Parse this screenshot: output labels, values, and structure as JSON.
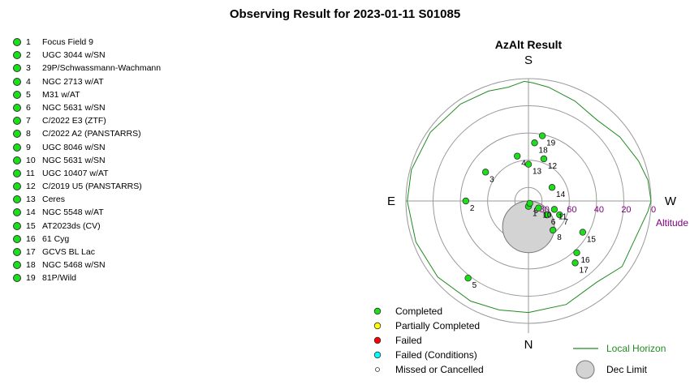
{
  "title": "Observing Result for 2023-01-11 S01085",
  "targets": [
    {
      "id": "1",
      "name": "Focus Field 9",
      "status": "Completed"
    },
    {
      "id": "2",
      "name": "UGC 3044 w/SN",
      "status": "Completed"
    },
    {
      "id": "3",
      "name": "29P/Schwassmann-Wachmann",
      "status": "Completed"
    },
    {
      "id": "4",
      "name": "NGC 2713 w/AT",
      "status": "Completed"
    },
    {
      "id": "5",
      "name": "M31 w/AT",
      "status": "Completed"
    },
    {
      "id": "6",
      "name": "NGC 5631 w/SN",
      "status": "Completed"
    },
    {
      "id": "7",
      "name": "C/2022 E3 (ZTF)",
      "status": "Completed"
    },
    {
      "id": "8",
      "name": "C/2022 A2 (PANSTARRS)",
      "status": "Completed"
    },
    {
      "id": "9",
      "name": "UGC 8046 w/SN",
      "status": "Completed"
    },
    {
      "id": "10",
      "name": "NGC 5631 w/SN",
      "status": "Completed"
    },
    {
      "id": "11",
      "name": "UGC 10407 w/AT",
      "status": "Completed"
    },
    {
      "id": "12",
      "name": "C/2019 U5 (PANSTARRS)",
      "status": "Completed"
    },
    {
      "id": "13",
      "name": "Ceres",
      "status": "Completed"
    },
    {
      "id": "14",
      "name": "NGC 5548 w/AT",
      "status": "Completed"
    },
    {
      "id": "15",
      "name": "AT2023ds (CV)",
      "status": "Completed"
    },
    {
      "id": "16",
      "name": "61 Cyg",
      "status": "Completed"
    },
    {
      "id": "17",
      "name": "GCVS BL Lac",
      "status": "Completed"
    },
    {
      "id": "18",
      "name": "NGC 5468 w/SN",
      "status": "Completed"
    },
    {
      "id": "19",
      "name": "81P/Wild",
      "status": "Completed"
    }
  ],
  "chart_data": {
    "type": "scatter",
    "projection": "polar-azalt",
    "title": "AzAlt Result",
    "directions": {
      "north": "N",
      "south": "S",
      "east": "E",
      "west": "W"
    },
    "radial_axis_label": "Altitude",
    "radial_ticks": [
      80,
      60,
      40,
      20,
      0
    ],
    "altitude_range": [
      0,
      90
    ],
    "rings_at_altitude": [
      0,
      20,
      40,
      60,
      80
    ],
    "colors": {
      "completed": "#19e019",
      "partial": "#ffff00",
      "failed": "#ff0000",
      "failed_conditions": "#00ffff",
      "missed": "#ffffff",
      "horizon": "#228b22",
      "dec_limit_fill": "#d3d3d3",
      "altitude_labels": "#800080"
    },
    "points": [
      {
        "label": "1",
        "az": 0,
        "alt": 86
      },
      {
        "label": "2",
        "az": 270,
        "alt": 44
      },
      {
        "label": "3",
        "az": 236,
        "alt": 52
      },
      {
        "label": "4",
        "az": 194,
        "alt": 56
      },
      {
        "label": "5",
        "az": 322,
        "alt": 18
      },
      {
        "label": "6",
        "az": 53,
        "alt": 73
      },
      {
        "label": "7",
        "az": 66,
        "alt": 65
      },
      {
        "label": "8",
        "az": 40,
        "alt": 62
      },
      {
        "label": "9",
        "az": 30,
        "alt": 88
      },
      {
        "label": "10",
        "az": 55,
        "alt": 81
      },
      {
        "label": "11",
        "az": 72,
        "alt": 70
      },
      {
        "label": "12",
        "az": 160,
        "alt": 57
      },
      {
        "label": "13",
        "az": 180,
        "alt": 63
      },
      {
        "label": "14",
        "az": 120,
        "alt": 70
      },
      {
        "label": "15",
        "az": 60,
        "alt": 44
      },
      {
        "label": "16",
        "az": 43,
        "alt": 38
      },
      {
        "label": "17",
        "az": 37,
        "alt": 33
      },
      {
        "label": "18",
        "az": 174,
        "alt": 47
      },
      {
        "label": "19",
        "az": 168,
        "alt": 41
      }
    ],
    "dec_limit": {
      "az": 0,
      "alt": 71,
      "radius_deg": 19
    },
    "horizon": [
      {
        "az": 0,
        "alt": 8
      },
      {
        "az": 20,
        "alt": 9
      },
      {
        "az": 40,
        "alt": 12
      },
      {
        "az": 55,
        "alt": 6
      },
      {
        "az": 70,
        "alt": 7
      },
      {
        "az": 85,
        "alt": 2
      },
      {
        "az": 90,
        "alt": 0
      },
      {
        "az": 100,
        "alt": 1
      },
      {
        "az": 110,
        "alt": 4
      },
      {
        "az": 125,
        "alt": 8
      },
      {
        "az": 140,
        "alt": 12
      },
      {
        "az": 155,
        "alt": 9
      },
      {
        "az": 170,
        "alt": 5
      },
      {
        "az": 178,
        "alt": 3
      },
      {
        "az": 182,
        "alt": 2
      },
      {
        "az": 190,
        "alt": 5
      },
      {
        "az": 200,
        "alt": 4
      },
      {
        "az": 215,
        "alt": 3
      },
      {
        "az": 235,
        "alt": 2
      },
      {
        "az": 255,
        "alt": 1
      },
      {
        "az": 270,
        "alt": 1
      },
      {
        "az": 290,
        "alt": 2
      },
      {
        "az": 310,
        "alt": 3
      },
      {
        "az": 330,
        "alt": 5
      },
      {
        "az": 345,
        "alt": 7
      },
      {
        "az": 360,
        "alt": 8
      }
    ],
    "legend": [
      {
        "key": "completed",
        "label": "Completed"
      },
      {
        "key": "partial",
        "label": "Partially Completed"
      },
      {
        "key": "failed",
        "label": "Failed"
      },
      {
        "key": "failed_conditions",
        "label": "Failed (Conditions)"
      },
      {
        "key": "missed",
        "label": "Missed or Cancelled"
      }
    ],
    "legend_extra": [
      {
        "key": "horizon",
        "label": "Local Horizon"
      },
      {
        "key": "dec_limit",
        "label": "Dec Limit"
      }
    ]
  }
}
